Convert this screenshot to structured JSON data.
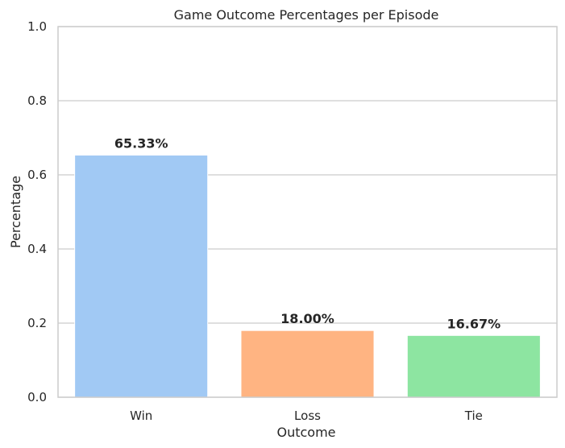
{
  "chart_data": {
    "type": "bar",
    "title": "Game Outcome Percentages per Episode",
    "xlabel": "Outcome",
    "ylabel": "Percentage",
    "categories": [
      "Win",
      "Loss",
      "Tie"
    ],
    "values": [
      0.6533,
      0.18,
      0.1667
    ],
    "data_labels": [
      "65.33%",
      "18.00%",
      "16.67%"
    ],
    "colors": [
      "#a1c9f4",
      "#ffb482",
      "#8de5a1"
    ],
    "ylim": [
      0,
      1
    ],
    "yticks": [
      0.0,
      0.2,
      0.4,
      0.6,
      0.8,
      1.0
    ],
    "ytick_labels": [
      "0.0",
      "0.2",
      "0.4",
      "0.6",
      "0.8",
      "1.0"
    ],
    "grid": "horizontal",
    "grid_color": "#cccccc",
    "spine_color": "#cccccc",
    "text_color": "#262626"
  }
}
